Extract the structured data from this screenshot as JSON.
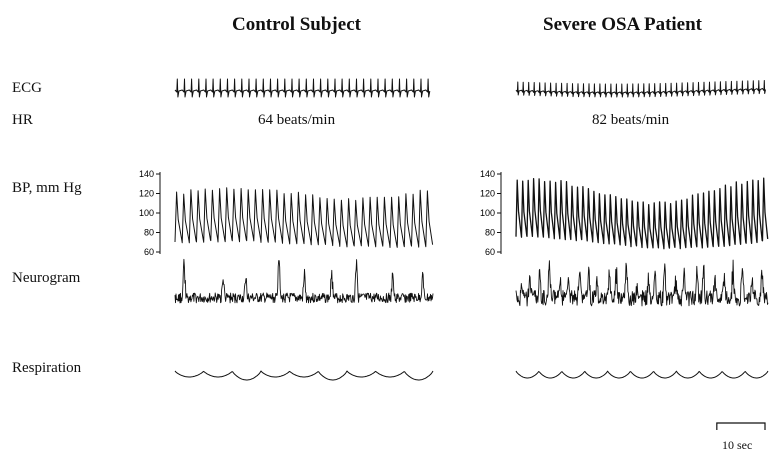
{
  "columns": [
    {
      "title": "Control Subject",
      "hr_text": "64 beats/min"
    },
    {
      "title": "Severe OSA Patient",
      "hr_text": "82 beats/min"
    }
  ],
  "row_labels": {
    "ecg": "ECG",
    "hr": "HR",
    "bp": "BP, mm Hg",
    "neurogram": "Neurogram",
    "respiration": "Respiration"
  },
  "scale_bar": {
    "label": "10 sec"
  },
  "chart_data": {
    "type": "line",
    "description_units": "time in seconds; BP in mm Hg; other traces unitless",
    "duration_sec": 34,
    "bp_axis": {
      "ticks": [
        60,
        80,
        100,
        120,
        140
      ],
      "ylim": [
        55,
        145
      ]
    },
    "panels": [
      {
        "name": "Control Subject",
        "heart_rate_bpm": 64,
        "bp": {
          "systolic_mean": 120,
          "systolic_var": 6,
          "diastolic_mean": 68,
          "diastolic_var": 3
        },
        "respiration_cycles": 9,
        "neurogram_bursts": 9
      },
      {
        "name": "Severe OSA Patient",
        "heart_rate_bpm": 82,
        "bp": {
          "systolic_mean": 122,
          "systolic_var": 12,
          "diastolic_mean": 70,
          "diastolic_var": 6
        },
        "respiration_cycles": 11,
        "neurogram_bursts": 26
      }
    ]
  }
}
